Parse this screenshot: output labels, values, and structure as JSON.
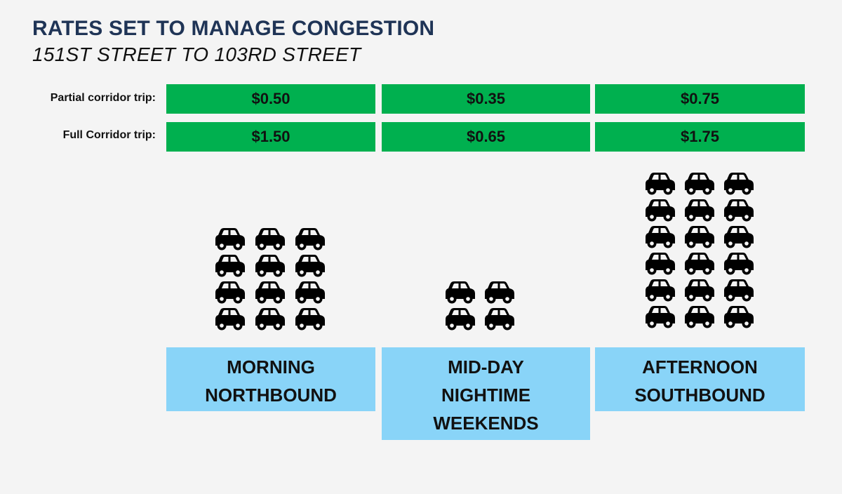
{
  "title": "RATES SET TO MANAGE CONGESTION",
  "subtitle": "151ST STREET TO 103RD STREET",
  "row_labels": {
    "partial": "Partial corridor trip:",
    "full": "Full Corridor trip:"
  },
  "periods": [
    {
      "lines": [
        "MORNING",
        "NORTHBOUND",
        ""
      ],
      "partial": "$0.50",
      "full": "$1.50",
      "cars": 12
    },
    {
      "lines": [
        "MID-DAY",
        "NIGHTIME",
        "WEEKENDS"
      ],
      "partial": "$0.35",
      "full": "$0.65",
      "cars": 4
    },
    {
      "lines": [
        "AFTERNOON",
        "SOUTHBOUND",
        ""
      ],
      "partial": "$0.75",
      "full": "$1.75",
      "cars": 18
    }
  ],
  "colors": {
    "title": "#1f3456",
    "rate_bg": "#00b04f",
    "period_bg": "#89d4f8",
    "car": "#000000"
  },
  "icon": "car-icon"
}
